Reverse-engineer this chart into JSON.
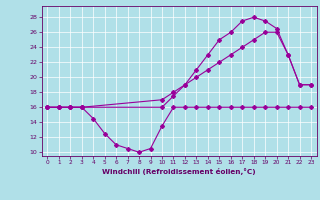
{
  "xlabel": "Windchill (Refroidissement éolien,°C)",
  "background_color": "#b0e0e8",
  "grid_color": "#ffffff",
  "line_color": "#990099",
  "xlim": [
    -0.5,
    23.5
  ],
  "ylim": [
    9.5,
    29.5
  ],
  "xticks": [
    0,
    1,
    2,
    3,
    4,
    5,
    6,
    7,
    8,
    9,
    10,
    11,
    12,
    13,
    14,
    15,
    16,
    17,
    18,
    19,
    20,
    21,
    22,
    23
  ],
  "yticks": [
    10,
    12,
    14,
    16,
    18,
    20,
    22,
    24,
    26,
    28
  ],
  "line1_x": [
    0,
    1,
    2,
    3,
    4,
    5,
    6,
    7,
    8,
    9,
    10,
    11,
    12,
    13,
    14,
    15,
    16,
    17,
    18,
    19,
    20,
    21,
    22,
    23
  ],
  "line1_y": [
    16,
    16,
    16,
    16,
    14.5,
    12.5,
    11,
    10.5,
    10,
    10.5,
    13.5,
    16,
    16,
    16,
    16,
    16,
    16,
    16,
    16,
    16,
    16,
    16,
    16,
    16
  ],
  "line2_x": [
    0,
    1,
    2,
    3,
    10,
    11,
    12,
    13,
    14,
    15,
    16,
    17,
    18,
    19,
    20,
    21,
    22,
    23
  ],
  "line2_y": [
    16,
    16,
    16,
    16,
    16,
    17.5,
    19,
    21,
    23,
    25,
    26,
    27.5,
    28,
    27.5,
    26.5,
    23,
    19,
    19
  ],
  "line3_x": [
    0,
    1,
    2,
    3,
    10,
    11,
    12,
    13,
    14,
    15,
    16,
    17,
    18,
    19,
    20,
    21,
    22,
    23
  ],
  "line3_y": [
    16,
    16,
    16,
    16,
    17,
    18,
    19,
    20,
    21,
    22,
    23,
    24,
    25,
    26,
    26,
    23,
    19,
    19
  ]
}
